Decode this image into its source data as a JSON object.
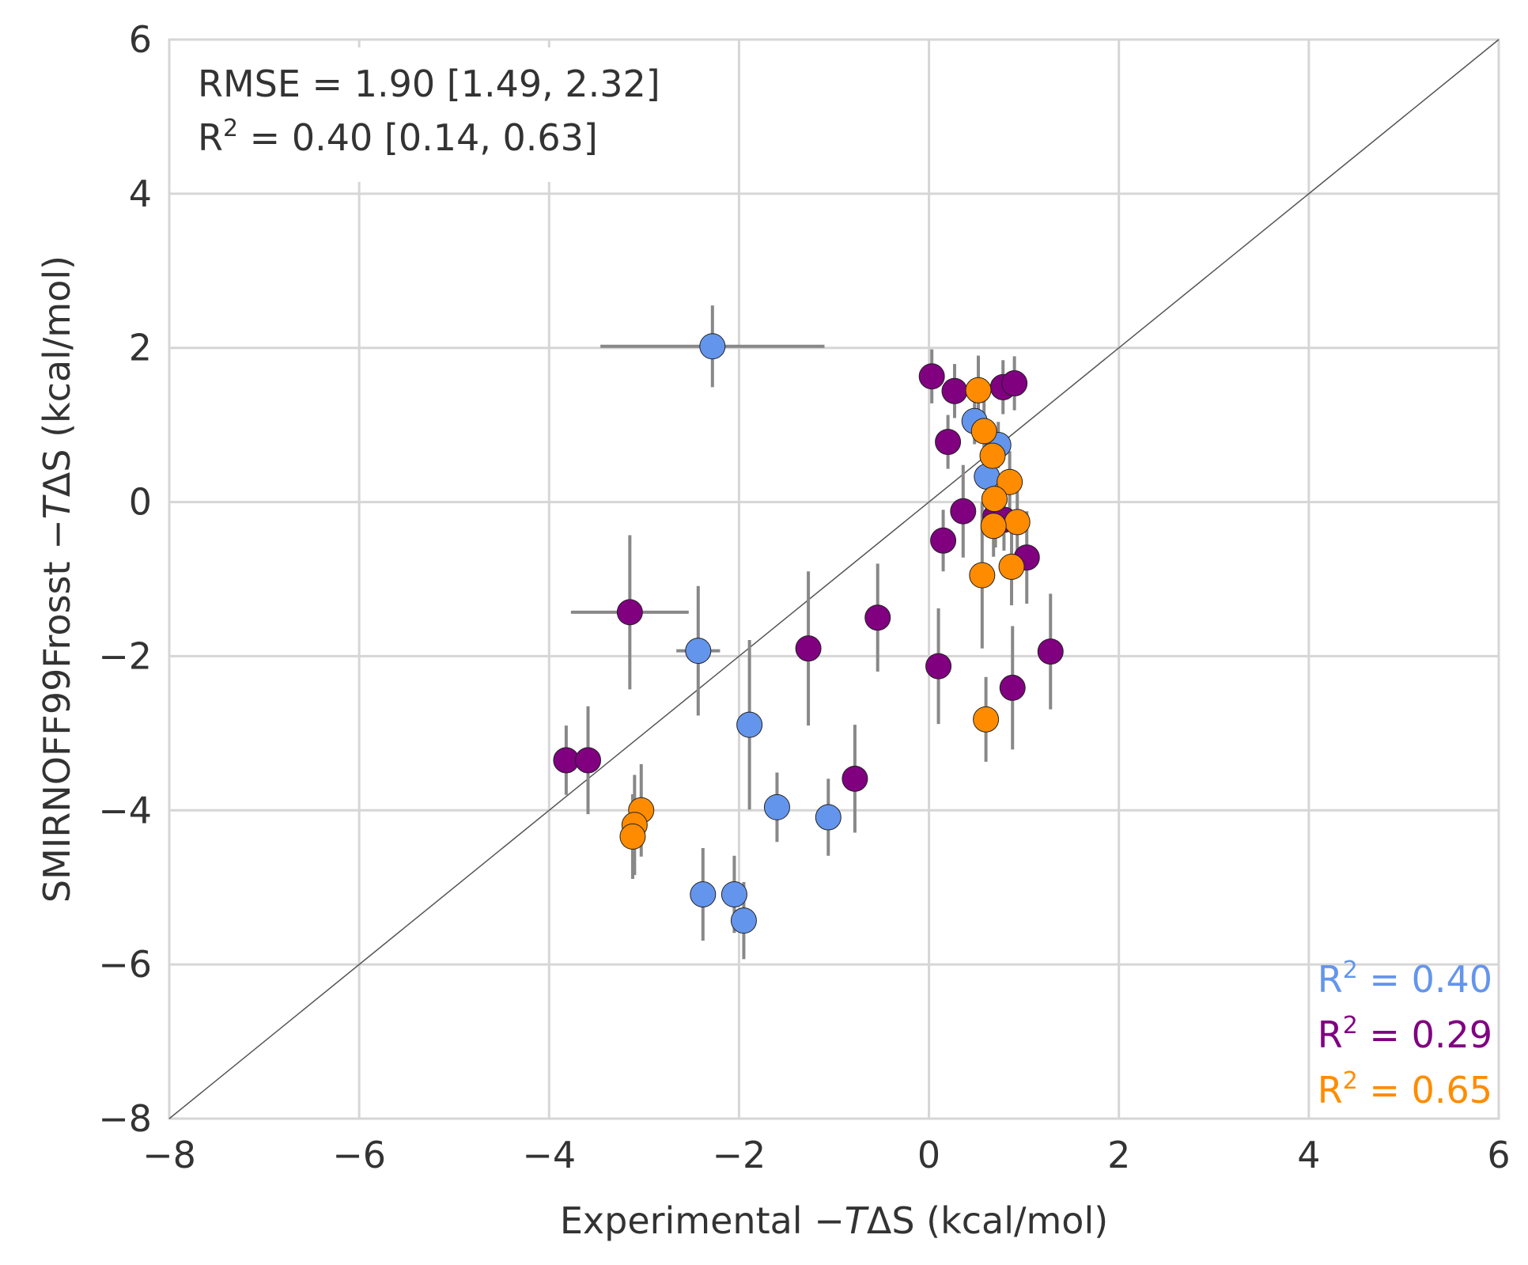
{
  "chart_data": {
    "type": "scatter",
    "x_label": [
      "Experimental −",
      "T",
      "ΔS (kcal/mol)"
    ],
    "y_label": [
      "SMIRNOFF99Frosst −",
      "T",
      "ΔS (kcal/mol)"
    ],
    "annotations": [
      {
        "text": "RMSE = 1.90 [1.49, 2.32]"
      },
      {
        "base": "R",
        "sup": "2",
        "text": " = 0.40 [0.14, 0.63]"
      }
    ],
    "xlim": [
      -8,
      6
    ],
    "ylim": [
      -8,
      6
    ],
    "xticks": [
      {
        "value": -8,
        "label": "−8"
      },
      {
        "value": -6,
        "label": "−6"
      },
      {
        "value": -4,
        "label": "−4"
      },
      {
        "value": -2,
        "label": "−2"
      },
      0,
      2,
      4,
      6
    ],
    "yticks": [
      {
        "value": -8,
        "label": "−8"
      },
      {
        "value": -6,
        "label": "−6"
      },
      {
        "value": -4,
        "label": "−4"
      },
      {
        "value": -2,
        "label": "−2"
      },
      0,
      2,
      4,
      6
    ],
    "grid": true,
    "identity_line": true,
    "series": [
      {
        "color": "#6495ed",
        "stat": {
          "base": "R",
          "sup": "2",
          "text": " = 0.40"
        },
        "x": [
          -2.28,
          -2.43,
          -1.89,
          -1.6,
          -1.06,
          -2.38,
          -2.05,
          -1.95,
          0.48,
          0.73,
          0.61
        ],
        "values": [
          2.02,
          -1.93,
          -2.89,
          -3.96,
          -4.09,
          -5.09,
          -5.09,
          -5.43,
          1.05,
          0.74,
          0.33
        ],
        "yerr": [
          0.53,
          0.84,
          1.1,
          0.45,
          0.5,
          0.6,
          0.5,
          0.5,
          0.3,
          0.3,
          0.3
        ],
        "xerr": [
          1.18,
          0.23,
          null,
          null,
          null,
          null,
          null,
          null,
          null,
          null,
          null
        ]
      },
      {
        "color": "#800080",
        "stat": {
          "base": "R",
          "sup": "2",
          "text": " = 0.29"
        },
        "x": [
          0.03,
          0.27,
          0.78,
          0.9,
          0.2,
          0.36,
          0.15,
          0.7,
          0.79,
          1.03,
          1.28,
          0.88,
          0.1,
          -0.54,
          -1.27,
          -0.78,
          -3.15,
          -3.82,
          -3.59
        ],
        "values": [
          1.63,
          1.44,
          1.49,
          1.54,
          0.78,
          -0.12,
          -0.5,
          -0.19,
          -0.23,
          -0.72,
          -1.94,
          -2.41,
          -2.13,
          -1.5,
          -1.9,
          -3.59,
          -1.43,
          -3.35,
          -3.35
        ],
        "yerr": [
          0.35,
          0.35,
          0.35,
          0.35,
          0.35,
          0.6,
          0.4,
          0.4,
          0.4,
          0.6,
          0.75,
          0.8,
          0.75,
          0.7,
          1.0,
          0.7,
          1.0,
          0.45,
          0.7
        ],
        "xerr": [
          null,
          null,
          null,
          null,
          null,
          null,
          null,
          null,
          null,
          null,
          null,
          null,
          null,
          null,
          null,
          null,
          0.62,
          null,
          null
        ]
      },
      {
        "color": "#ff8c00",
        "stat": {
          "base": "R",
          "sup": "2",
          "text": " = 0.65"
        },
        "x": [
          0.52,
          0.58,
          0.67,
          0.85,
          0.69,
          0.93,
          0.68,
          0.87,
          0.56,
          0.6,
          -3.03,
          -3.1,
          -3.12
        ],
        "values": [
          1.45,
          0.92,
          0.6,
          0.26,
          0.04,
          -0.26,
          -0.31,
          -0.84,
          -0.95,
          -2.82,
          -4.0,
          -4.19,
          -4.34
        ],
        "yerr": [
          0.45,
          0.4,
          0.4,
          0.4,
          0.4,
          0.4,
          0.4,
          0.5,
          0.95,
          0.55,
          0.6,
          0.65,
          0.55
        ],
        "xerr": [
          null,
          null,
          null,
          null,
          null,
          null,
          null,
          null,
          null,
          null,
          null,
          null,
          null
        ]
      }
    ]
  }
}
